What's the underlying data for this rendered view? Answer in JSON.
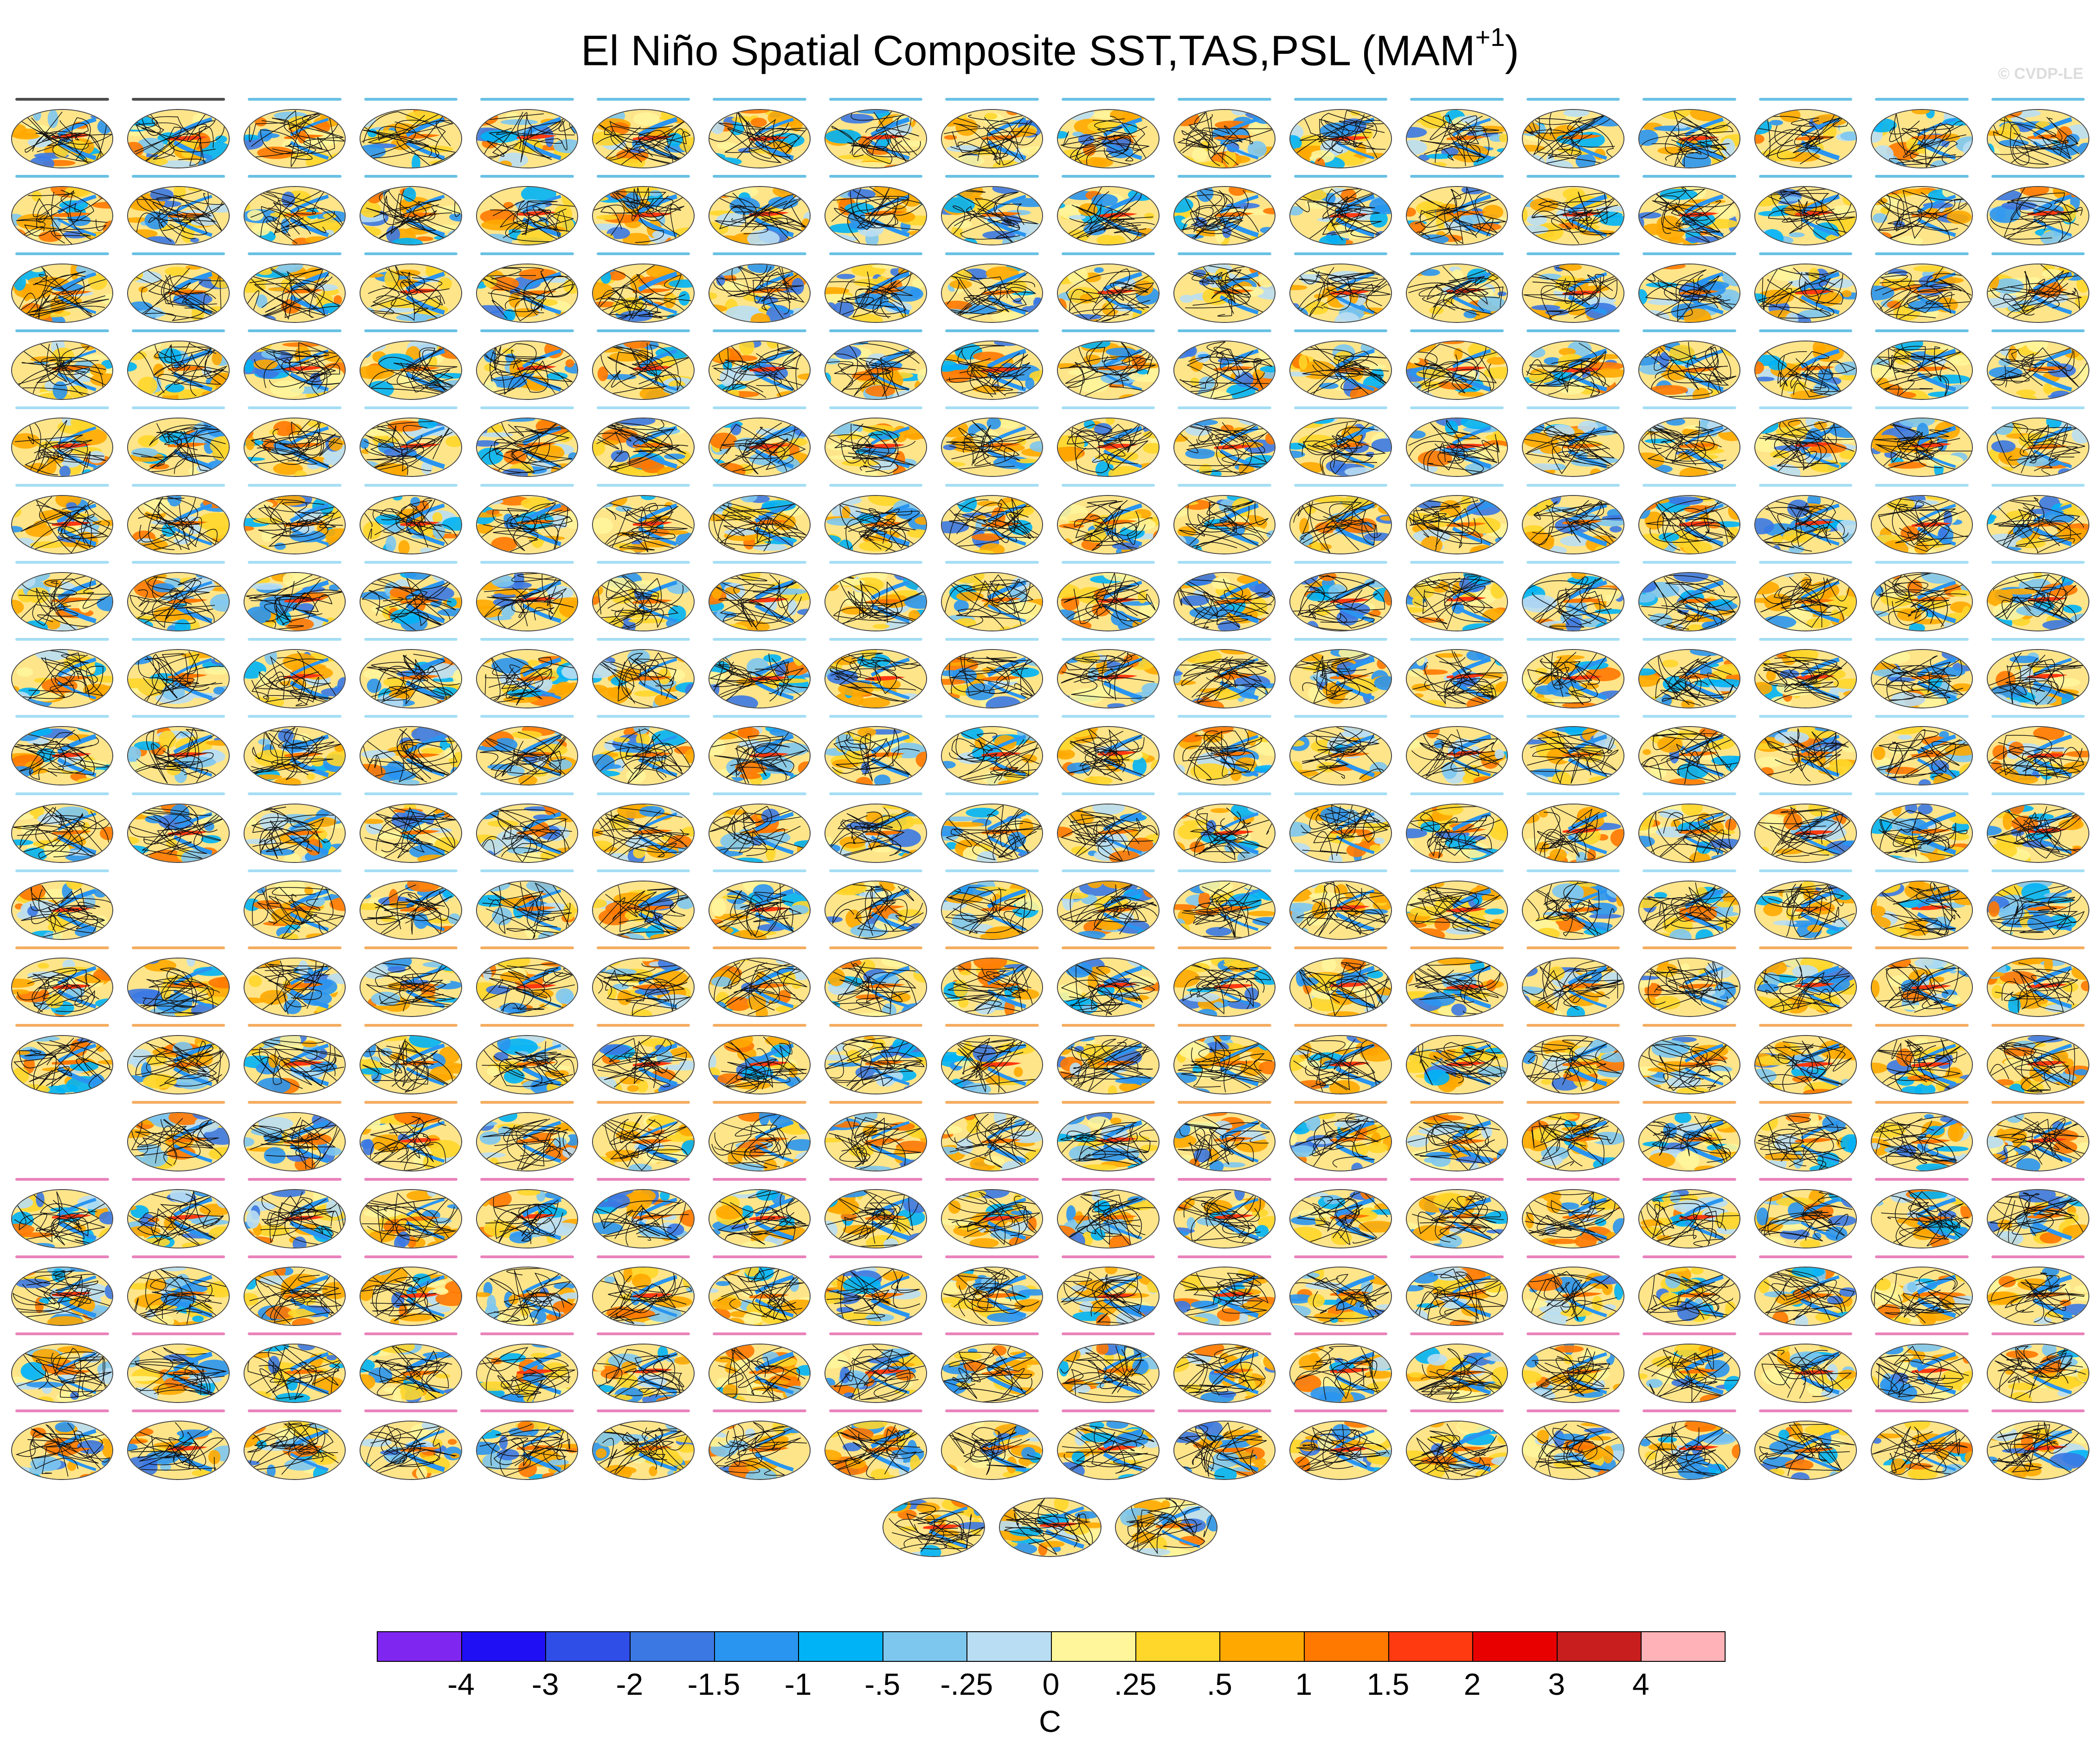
{
  "title": "El Niño Spatial Composite SST,TAS,PSL (MAM",
  "title_superscript": "+1",
  "title_suffix": ")",
  "credit": "© CVDP-LE",
  "colorbar": {
    "units": "C",
    "labels": [
      "-4",
      "-3",
      "-2",
      "-1.5",
      "-1",
      "-.5",
      "-.25",
      "0",
      ".25",
      ".5",
      "1",
      "1.5",
      "2",
      "3",
      "4"
    ],
    "colors": [
      "#7f27f0",
      "#1e0ff5",
      "#2f4ee8",
      "#3b78e3",
      "#2a95f0",
      "#00b3f6",
      "#7dc7ef",
      "#b9def3",
      "#fff59a",
      "#ffd62a",
      "#ffa800",
      "#ff7800",
      "#ff3a10",
      "#e80000",
      "#c81e1e",
      "#ffb3b8"
    ]
  },
  "grid": {
    "rows": [
      18,
      18,
      18,
      18,
      18,
      18,
      18,
      18,
      18,
      18,
      17,
      18,
      18,
      17,
      18,
      18,
      18,
      18,
      3
    ],
    "row_offsets": [
      0,
      0,
      0,
      0,
      0,
      0,
      0,
      0,
      0,
      0,
      0,
      0,
      0,
      1,
      0,
      0,
      0,
      0,
      0
    ],
    "row_gaps": {
      "10": [
        1
      ]
    },
    "last_row_start_col": 7.5,
    "title_colors": {
      "row0": [
        "#000",
        "#000",
        "#2aa6d8",
        "#2aa6d8",
        "#2aa6d8",
        "#2aa6d8",
        "#2aa6d8",
        "#2aa6d8",
        "#2aa6d8",
        "#2aa6d8",
        "#2aa6d8",
        "#2aa6d8",
        "#2aa6d8",
        "#2aa6d8",
        "#2aa6d8",
        "#2aa6d8",
        "#2aa6d8",
        "#2aa6d8"
      ],
      "default": "#2aa6d8",
      "alt": "#7fd0f0",
      "orange": "#f08a1c",
      "pink": "#e04fa0"
    },
    "row_title_styles": [
      "row0",
      "default",
      "default",
      "default",
      "alt",
      "alt",
      "alt",
      "alt",
      "alt",
      "alt",
      "alt",
      "orange",
      "orange",
      "orange",
      "pink",
      "pink",
      "pink",
      "pink",
      "none"
    ]
  }
}
